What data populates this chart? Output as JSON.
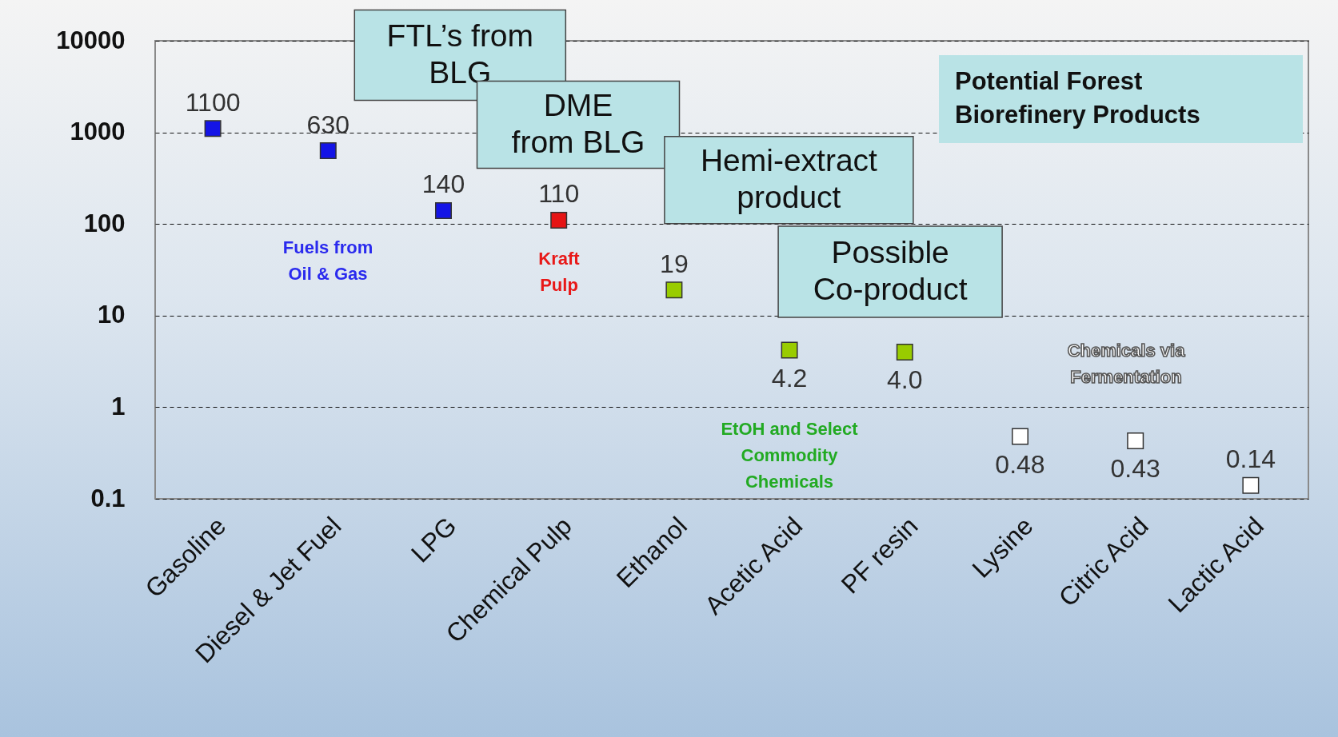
{
  "chart_data": {
    "type": "scatter",
    "marker": "square",
    "log": true,
    "grid": "y",
    "categories": [
      "Gasoline",
      "Diesel & Jet Fuel",
      "LPG",
      "Chemical Pulp",
      "Ethanol",
      "Acetic Acid",
      "PF resin",
      "Lysine",
      "Citric Acid",
      "Lactic Acid"
    ],
    "values": [
      1100,
      630,
      140,
      110,
      19,
      4.2,
      4.0,
      0.48,
      0.43,
      0.14
    ],
    "colors": [
      "#1414e6",
      "#1414e6",
      "#1414e6",
      "#e61414",
      "#99cc00",
      "#99cc00",
      "#99cc00",
      "#ffffff",
      "#ffffff",
      "#ffffff"
    ],
    "value_labels": [
      "1100",
      "630",
      "140",
      "110",
      "19",
      "4.2",
      "4.0",
      "0.48",
      "0.43",
      "0.14"
    ],
    "ylim": [
      0.1,
      10000
    ],
    "yticks": [
      0.1,
      1,
      10,
      100,
      1000,
      10000
    ],
    "annotations": [
      {
        "text": "FTL’s from BLG",
        "x": "Diesel & Jet Fuel",
        "y": 630
      },
      {
        "text": "DME from BLG",
        "x": "LPG",
        "y": 140
      },
      {
        "text": "Hemi-extract product",
        "x": "Ethanol",
        "y": 19
      },
      {
        "text": "Possible Co-product",
        "x": "Acetic Acid",
        "y": 4.2
      },
      "Potential Forest Biorefinery Products",
      "Fuels from Oil & Gas",
      "Kraft Pulp",
      "EtOH and Select Commodity Chemicals",
      "Chemicals via Fermentation"
    ]
  }
}
